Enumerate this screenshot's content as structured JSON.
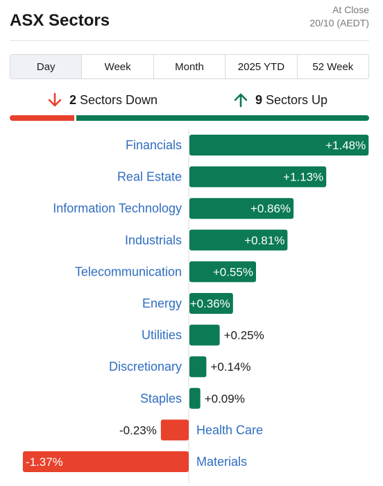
{
  "header": {
    "title": "ASX Sectors",
    "status_line1": "At Close",
    "status_line2": "20/10 (AEDT)"
  },
  "tabs": [
    {
      "label": "Day",
      "active": true
    },
    {
      "label": "Week",
      "active": false
    },
    {
      "label": "Month",
      "active": false
    },
    {
      "label": "2025 YTD",
      "active": false
    },
    {
      "label": "52 Week",
      "active": false
    }
  ],
  "summary": {
    "down_count": "2",
    "down_label": "Sectors Down",
    "up_count": "9",
    "up_label": "Sectors Up",
    "down_icon": "arrow-down-icon",
    "up_icon": "arrow-up-icon"
  },
  "colors": {
    "up": "#0b7a55",
    "down": "#e8412c",
    "label": "#2f6dbf"
  },
  "chart_data": {
    "type": "bar",
    "orientation": "horizontal",
    "categories": [
      "Financials",
      "Real Estate",
      "Information Technology",
      "Industrials",
      "Telecommunication",
      "Energy",
      "Utilities",
      "Discretionary",
      "Staples",
      "Health Care",
      "Materials"
    ],
    "values": [
      1.48,
      1.13,
      0.86,
      0.81,
      0.55,
      0.36,
      0.25,
      0.14,
      0.09,
      -0.23,
      -1.37
    ],
    "value_labels": [
      "+1.48%",
      "+1.13%",
      "+0.86%",
      "+0.81%",
      "+0.55%",
      "+0.36%",
      "+0.25%",
      "+0.14%",
      "+0.09%",
      "-0.23%",
      "-1.37%"
    ],
    "unit": "%",
    "grid": false
  }
}
